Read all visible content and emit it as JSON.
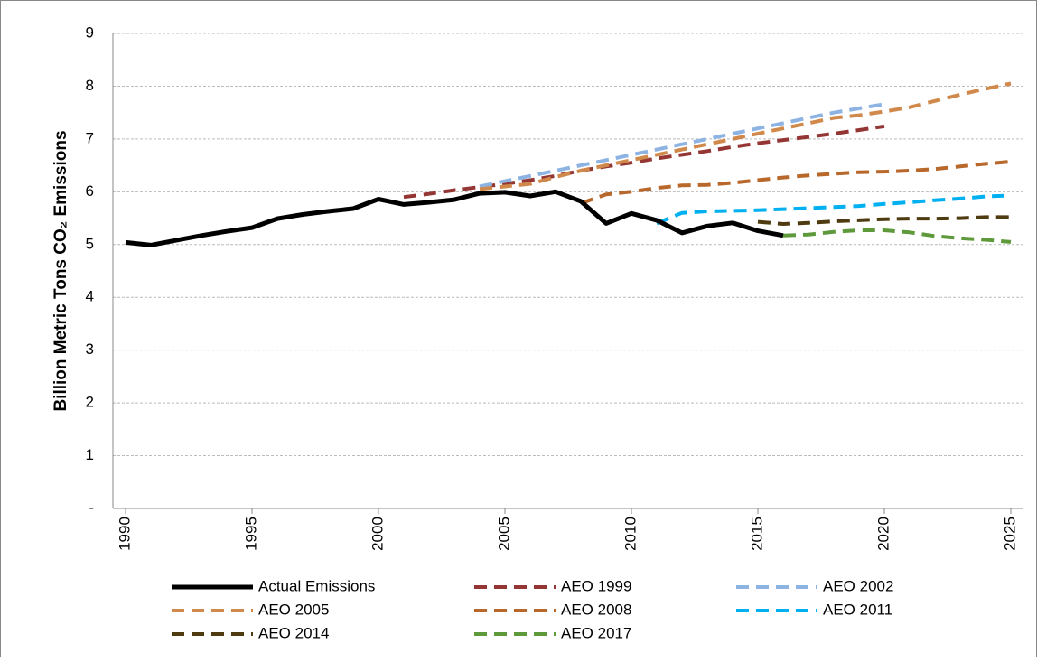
{
  "chart_data": {
    "type": "line",
    "y_label": "Billion  Metric Tons CO₂ Emissions",
    "x": [
      1990,
      1991,
      1992,
      1993,
      1994,
      1995,
      1996,
      1997,
      1998,
      1999,
      2000,
      2001,
      2002,
      2003,
      2004,
      2005,
      2006,
      2007,
      2008,
      2009,
      2010,
      2011,
      2012,
      2013,
      2014,
      2015,
      2016,
      2017,
      2018,
      2019,
      2020,
      2021,
      2022,
      2023,
      2024,
      2025
    ],
    "xlim": [
      1989.5,
      2025.5
    ],
    "xticks": [
      1990,
      1995,
      2000,
      2005,
      2010,
      2015,
      2020,
      2025
    ],
    "ylim": [
      0,
      9
    ],
    "yticks": [
      {
        "value": 0,
        "label": "-"
      },
      1,
      2,
      3,
      4,
      5,
      6,
      7,
      8,
      9
    ],
    "grid": true,
    "legend": "bottom",
    "series": [
      {
        "name": "Actual Emissions",
        "color": "#000000",
        "dashed": false,
        "values": [
          5.04,
          4.99,
          5.08,
          5.17,
          5.25,
          5.32,
          5.49,
          5.57,
          5.63,
          5.68,
          5.86,
          5.76,
          5.8,
          5.85,
          5.97,
          5.99,
          5.92,
          6.0,
          5.82,
          5.4,
          5.59,
          5.46,
          5.22,
          5.35,
          5.41,
          5.26,
          5.17,
          null,
          null,
          null,
          null,
          null,
          null,
          null,
          null,
          null
        ]
      },
      {
        "name": "AEO 1999",
        "color": "#943634",
        "dashed": true,
        "values": [
          null,
          null,
          null,
          null,
          null,
          null,
          null,
          null,
          null,
          null,
          null,
          5.9,
          5.96,
          6.03,
          6.09,
          6.15,
          6.22,
          6.3,
          6.4,
          6.48,
          6.55,
          6.63,
          6.7,
          6.77,
          6.85,
          6.92,
          6.98,
          7.04,
          7.1,
          7.17,
          7.24,
          null,
          null,
          null,
          null,
          null
        ]
      },
      {
        "name": "AEO 2002",
        "color": "#8db3e2",
        "dashed": true,
        "values": [
          null,
          null,
          null,
          null,
          null,
          null,
          null,
          null,
          null,
          null,
          null,
          null,
          null,
          null,
          6.1,
          6.2,
          6.3,
          6.4,
          6.5,
          6.6,
          6.7,
          6.8,
          6.9,
          7.0,
          7.1,
          7.2,
          7.3,
          7.4,
          7.5,
          7.58,
          7.66,
          null,
          null,
          null,
          null,
          null
        ]
      },
      {
        "name": "AEO 2005",
        "color": "#d0894a",
        "dashed": true,
        "values": [
          null,
          null,
          null,
          null,
          null,
          null,
          null,
          null,
          null,
          null,
          null,
          null,
          null,
          null,
          6.05,
          6.1,
          6.15,
          6.28,
          6.4,
          6.5,
          6.6,
          6.7,
          6.8,
          6.9,
          7.0,
          7.1,
          7.2,
          7.3,
          7.4,
          7.45,
          7.52,
          7.6,
          7.72,
          7.84,
          7.95,
          8.05
        ]
      },
      {
        "name": "AEO 2008",
        "color": "#b8682b",
        "dashed": true,
        "values": [
          null,
          null,
          null,
          null,
          null,
          null,
          null,
          null,
          null,
          null,
          null,
          null,
          null,
          null,
          null,
          null,
          null,
          null,
          5.78,
          5.95,
          6.0,
          6.07,
          6.12,
          6.13,
          6.17,
          6.22,
          6.27,
          6.31,
          6.34,
          6.37,
          6.38,
          6.4,
          6.43,
          6.48,
          6.53,
          6.57
        ]
      },
      {
        "name": "AEO 2011",
        "color": "#00b0f0",
        "dashed": true,
        "values": [
          null,
          null,
          null,
          null,
          null,
          null,
          null,
          null,
          null,
          null,
          null,
          null,
          null,
          null,
          null,
          null,
          null,
          null,
          null,
          null,
          null,
          5.4,
          5.6,
          5.63,
          5.64,
          5.65,
          5.67,
          5.69,
          5.71,
          5.73,
          5.77,
          5.8,
          5.84,
          5.87,
          5.91,
          5.93
        ]
      },
      {
        "name": "AEO 2014",
        "color": "#4f3b10",
        "dashed": true,
        "values": [
          null,
          null,
          null,
          null,
          null,
          null,
          null,
          null,
          null,
          null,
          null,
          null,
          null,
          null,
          null,
          null,
          null,
          null,
          null,
          null,
          null,
          null,
          null,
          null,
          null,
          5.43,
          5.39,
          5.41,
          5.44,
          5.46,
          5.48,
          5.49,
          5.49,
          5.5,
          5.52,
          5.52
        ]
      },
      {
        "name": "AEO 2017",
        "color": "#5e9a3b",
        "dashed": true,
        "values": [
          null,
          null,
          null,
          null,
          null,
          null,
          null,
          null,
          null,
          null,
          null,
          null,
          null,
          null,
          null,
          null,
          null,
          null,
          null,
          null,
          null,
          null,
          null,
          null,
          null,
          null,
          5.17,
          5.19,
          5.24,
          5.27,
          5.27,
          5.23,
          5.16,
          5.12,
          5.09,
          5.05
        ]
      }
    ]
  }
}
